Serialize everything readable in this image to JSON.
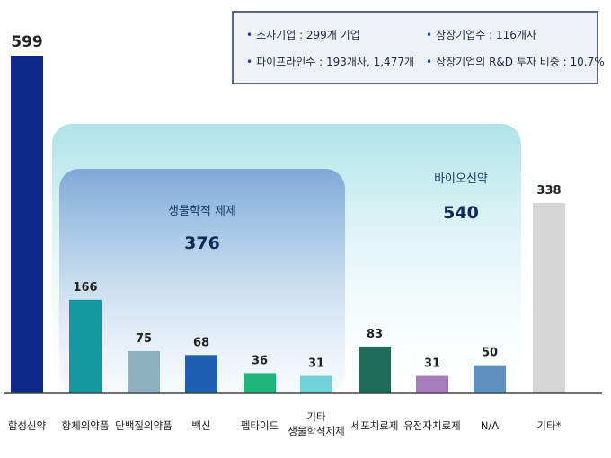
{
  "info_box": {
    "items": [
      {
        "text": "조사기업 : 299개 기업"
      },
      {
        "text": "상장기업수 : 116개사"
      },
      {
        "text": "파이프라인수 : 193개사, 1,477개"
      },
      {
        "text": "상장기업의 R&D 투자 비중 : 10.7%"
      }
    ]
  },
  "groups": {
    "bio": {
      "label": "바이오신약",
      "total": "540"
    },
    "biologics": {
      "label": "생물학적 제제",
      "total": "376"
    }
  },
  "chart_data": {
    "type": "bar",
    "categories": [
      "합성신약",
      "항체의약품",
      "단백질의약품",
      "백신",
      "펩타이드",
      "기타\n생물학적제제",
      "세포치료제",
      "유전자치료제",
      "N/A",
      "기타*"
    ],
    "values": [
      599,
      166,
      75,
      68,
      36,
      31,
      83,
      31,
      50,
      338
    ],
    "colors": [
      "#0d2a8a",
      "#139aa0",
      "#8fb0c0",
      "#1d5fb0",
      "#1fb57a",
      "#6fd3d8",
      "#1e6b58",
      "#a57cbc",
      "#5e90c0",
      "#d6d6d6"
    ],
    "ylim": [
      0,
      599
    ]
  }
}
